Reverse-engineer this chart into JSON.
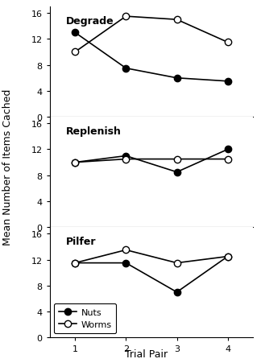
{
  "subplots": [
    {
      "title": "Degrade",
      "nuts": [
        13.0,
        7.5,
        6.0,
        5.5
      ],
      "worms": [
        10.0,
        15.5,
        15.0,
        11.5
      ]
    },
    {
      "title": "Replenish",
      "nuts": [
        10.0,
        11.0,
        8.5,
        12.0
      ],
      "worms": [
        10.0,
        10.5,
        10.5,
        10.5
      ]
    },
    {
      "title": "Pilfer",
      "nuts": [
        11.5,
        11.5,
        7.0,
        12.5
      ],
      "worms": [
        11.5,
        13.5,
        11.5,
        12.5
      ]
    }
  ],
  "x": [
    1,
    2,
    3,
    4
  ],
  "ylim": [
    0,
    17
  ],
  "yticks": [
    0,
    4,
    8,
    12,
    16
  ],
  "xlabel": "Trial Pair",
  "ylabel": "Mean Number of Items Cached",
  "nuts_color": "#000000",
  "worms_color": "#000000",
  "nuts_marker": "o",
  "worms_marker": "o",
  "nuts_markerfacecolor": "#000000",
  "worms_markerfacecolor": "#ffffff",
  "background_color": "#ffffff",
  "legend_labels": [
    "Nuts",
    "Worms"
  ],
  "markersize": 6,
  "linewidth": 1.2,
  "title_fontsize": 9,
  "label_fontsize": 9,
  "tick_fontsize": 8
}
